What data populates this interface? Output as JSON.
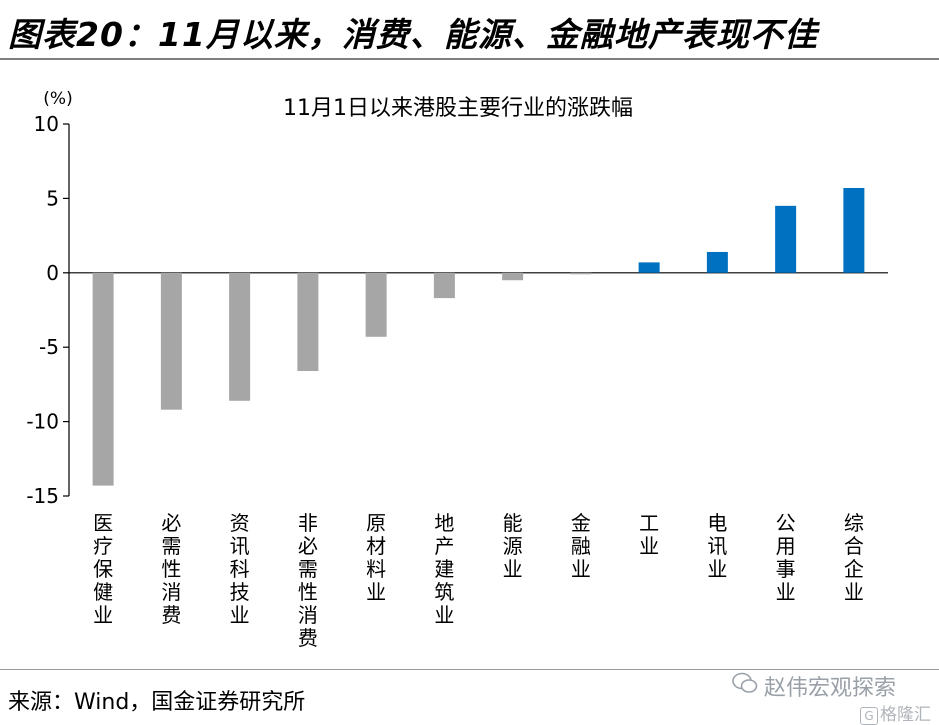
{
  "header": {
    "figure_title": "图表20：11月以来，消费、能源、金融地产表现不佳"
  },
  "footer": {
    "source": "来源：Wind，国金证券研究所"
  },
  "watermark": {
    "account": "赵伟宏观探索",
    "badge": "格隆汇",
    "badge_glyph": "G"
  },
  "colors": {
    "negative": "#a6a6a6",
    "positive": "#0070c0",
    "axis": "#000000"
  },
  "chart_data": {
    "type": "bar",
    "title": "11月1日以来港股主要行业的涨跌幅",
    "ylabel": "(%)",
    "xlabel": "",
    "ylim": [
      -15,
      10
    ],
    "yticks": [
      10,
      5,
      0,
      -5,
      -10,
      -15
    ],
    "ytick_labels": [
      "10",
      "5",
      "0",
      "-5",
      "-10",
      "-15"
    ],
    "categories": [
      "医疗保健业",
      "必需性消费",
      "资讯科技业",
      "非必需性消费",
      "原材料业",
      "地产建筑业",
      "能源业",
      "金融业",
      "工业",
      "电讯业",
      "公用事业",
      "综合企业"
    ],
    "values": [
      -14.3,
      -9.2,
      -8.6,
      -6.6,
      -4.3,
      -1.7,
      -0.5,
      -0.1,
      0.7,
      1.4,
      4.5,
      5.7
    ]
  }
}
